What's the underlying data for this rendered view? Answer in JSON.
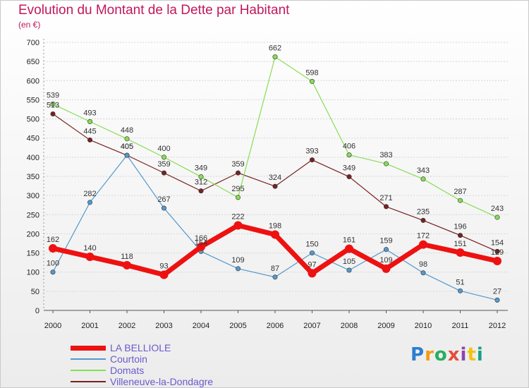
{
  "title": "Evolution du Montant de la Dette par Habitant",
  "subtitle": "(en €)",
  "logo_text": "Proxiti",
  "chart_data": {
    "type": "line",
    "categories": [
      "2000",
      "2001",
      "2002",
      "2003",
      "2004",
      "2005",
      "2006",
      "2007",
      "2008",
      "2009",
      "2010",
      "2011",
      "2012"
    ],
    "ylim": [
      0,
      700
    ],
    "yticks": [
      0,
      50,
      100,
      150,
      200,
      250,
      300,
      350,
      400,
      450,
      500,
      550,
      600,
      650,
      700
    ],
    "grid": true,
    "legend_position": "bottom-left",
    "series": [
      {
        "name": "LA BELLIOLE",
        "color": "#ee1111",
        "values": [
          162,
          140,
          118,
          93,
          166,
          222,
          198,
          97,
          161,
          109,
          172,
          151,
          129
        ]
      },
      {
        "name": "Courtoin",
        "color": "#5599cc",
        "values": [
          100,
          282,
          405,
          267,
          154,
          109,
          87,
          150,
          105,
          159,
          98,
          51,
          27
        ]
      },
      {
        "name": "Domats",
        "color": "#88dd55",
        "values": [
          539,
          493,
          448,
          400,
          349,
          295,
          662,
          598,
          406,
          383,
          343,
          287,
          243
        ]
      },
      {
        "name": "Villeneuve-la-Dondagre",
        "color": "#772222",
        "values": [
          513,
          445,
          405,
          359,
          312,
          359,
          324,
          393,
          349,
          271,
          235,
          196,
          154
        ]
      }
    ]
  }
}
